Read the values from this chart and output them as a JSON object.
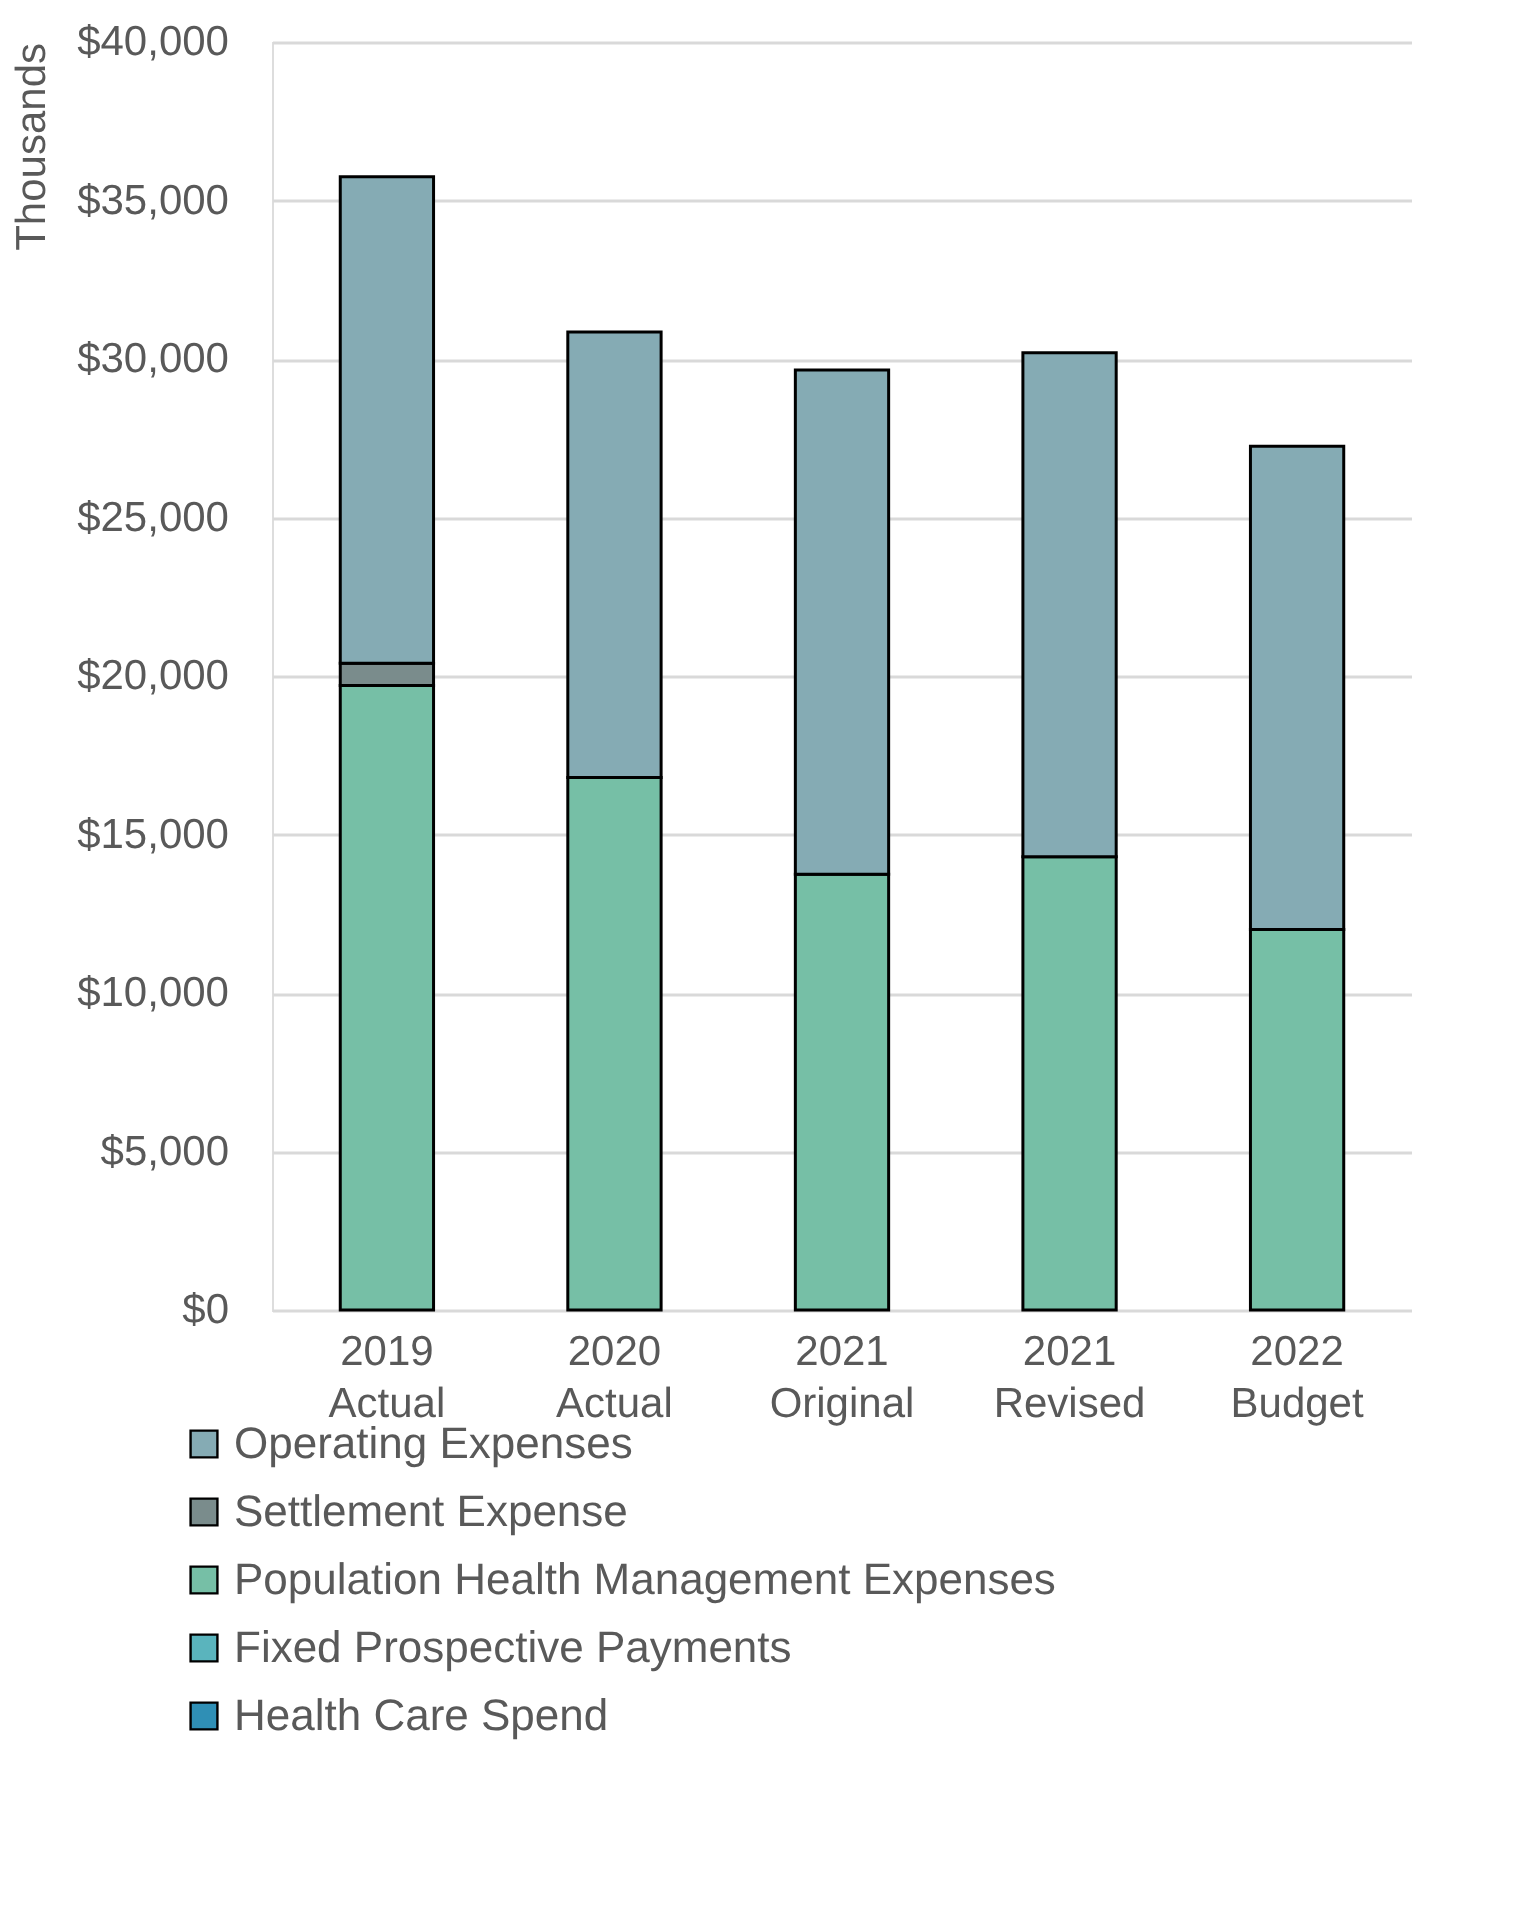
{
  "chart_data": {
    "type": "bar",
    "stacked": true,
    "ylabel": "Thousands",
    "categories": [
      "2019 Actual",
      "2020 Actual",
      "2021 Original",
      "2021 Revised",
      "2022 Budget"
    ],
    "series": [
      {
        "name": "Health Care Spend",
        "color": "#2f8fb5",
        "values": [
          null,
          null,
          null,
          null,
          null
        ]
      },
      {
        "name": "Fixed Prospective Payments",
        "color": "#5ab4bd",
        "values": [
          null,
          null,
          null,
          null,
          null
        ]
      },
      {
        "name": "Population Health Management Expenses",
        "color": "#76bfa6",
        "values": [
          19700,
          16800,
          13750,
          14300,
          12000
        ]
      },
      {
        "name": "Settlement Expense",
        "color": "#7a8c8c",
        "values": [
          700,
          null,
          null,
          null,
          null
        ]
      },
      {
        "name": "Operating Expenses",
        "color": "#85abb4",
        "values": [
          15350,
          14050,
          15900,
          15900,
          15250
        ]
      }
    ],
    "ylim": [
      0,
      40000
    ],
    "yticks": [
      {
        "value": 0,
        "label": "$0"
      },
      {
        "value": 5000,
        "label": "$5,000"
      },
      {
        "value": 10000,
        "label": "$10,000"
      },
      {
        "value": 15000,
        "label": "$15,000"
      },
      {
        "value": 20000,
        "label": "$20,000"
      },
      {
        "value": 25000,
        "label": "$25,000"
      },
      {
        "value": 30000,
        "label": "$30,000"
      },
      {
        "value": 35000,
        "label": "$35,000"
      },
      {
        "value": 40000,
        "label": "$40,000"
      }
    ],
    "grid": "y",
    "legend": "bottom"
  }
}
